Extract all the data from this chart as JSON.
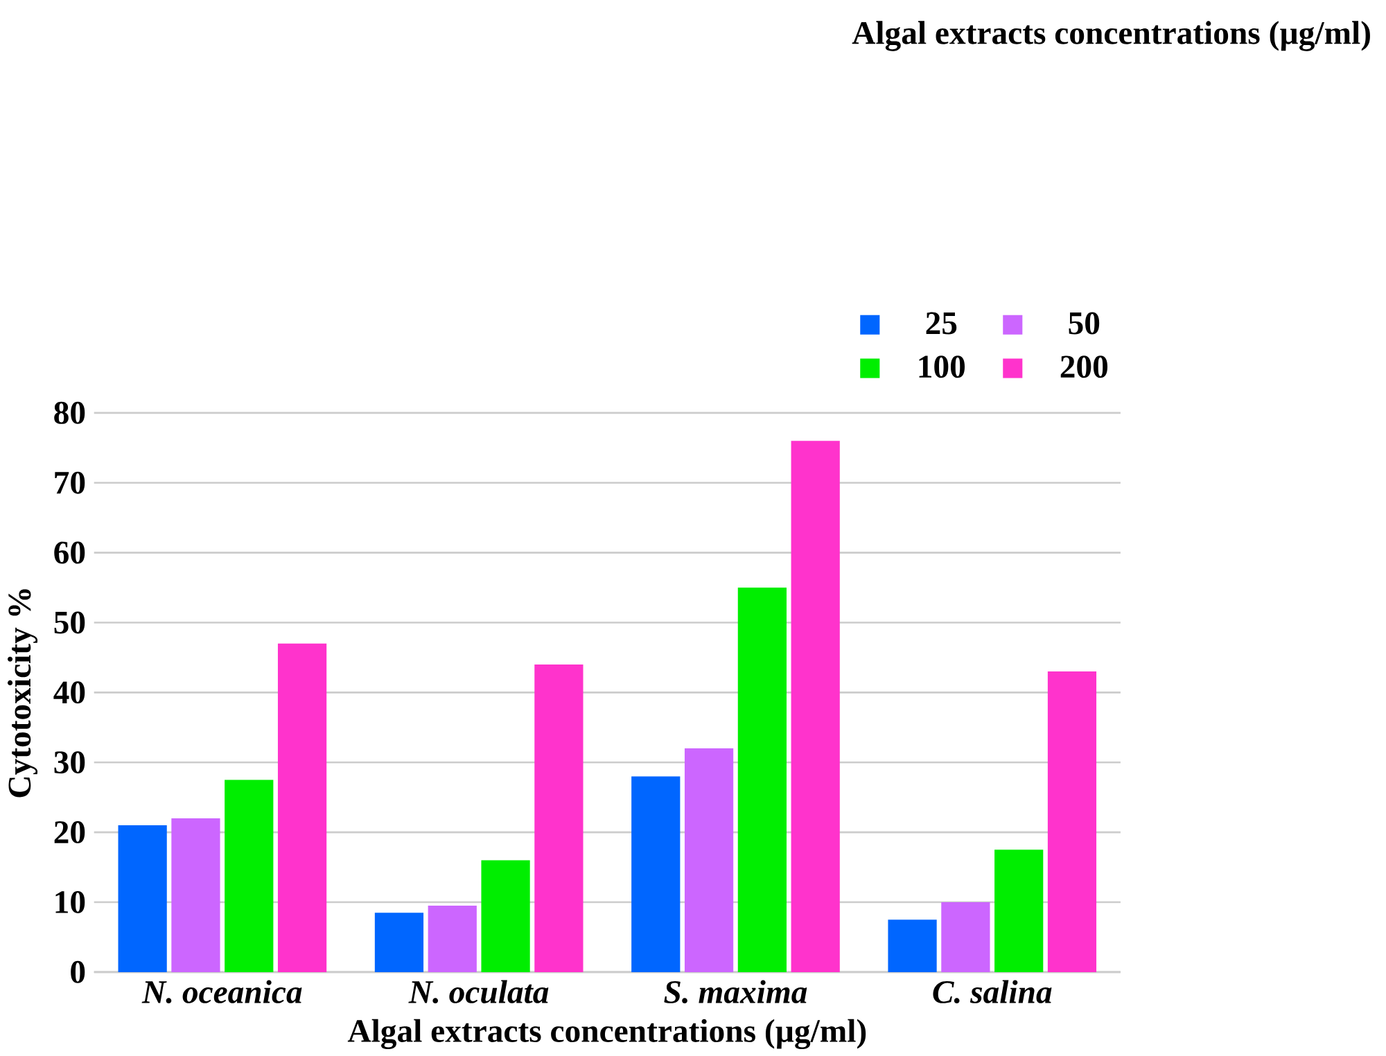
{
  "chart_data": {
    "type": "bar",
    "xlabel": "Algal extracts concentrations (µg/ml)",
    "ylabel": "Cytotoxicity %",
    "legend_title": "Algal extracts concentrations (µg/ml)",
    "categories": [
      "N. oceanica",
      "N. oculata",
      "S. maxima",
      "C. salina"
    ],
    "series": [
      {
        "name": "25",
        "color": "#0066ff",
        "values": [
          21,
          8.5,
          28,
          7.5
        ]
      },
      {
        "name": "50",
        "color": "#cc66ff",
        "values": [
          22,
          9.5,
          32,
          10
        ]
      },
      {
        "name": "100",
        "color": "#00ee00",
        "values": [
          27.5,
          16,
          55,
          17.5
        ]
      },
      {
        "name": "200",
        "color": "#ff33cc",
        "values": [
          47,
          44,
          76,
          43
        ]
      }
    ],
    "ylim": [
      0,
      80
    ],
    "yticks": [
      0,
      10,
      20,
      30,
      40,
      50,
      60,
      70,
      80
    ],
    "grid": "y",
    "legend": "top right"
  }
}
